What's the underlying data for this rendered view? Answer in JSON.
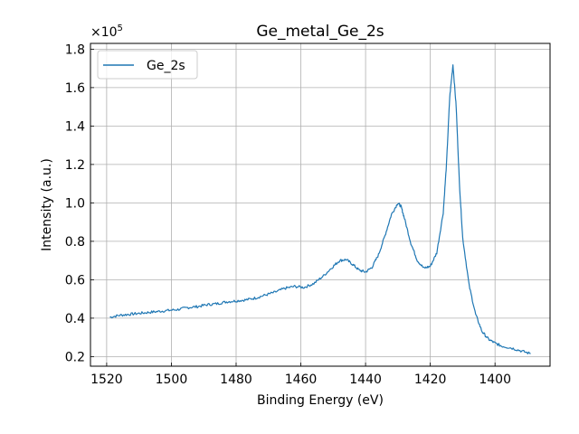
{
  "chart_data": {
    "type": "line",
    "title": "Ge_metal_Ge_2s",
    "xlabel": "Binding Energy (eV)",
    "ylabel": "Intensity (a.u.)",
    "x_reversed": true,
    "xlim": [
      1525,
      1383
    ],
    "ylim": [
      15000,
      183000
    ],
    "xticks": [
      1520,
      1500,
      1480,
      1460,
      1440,
      1420,
      1400
    ],
    "xtick_labels": [
      "1520",
      "1500",
      "1480",
      "1460",
      "1440",
      "1420",
      "1400"
    ],
    "yticks": [
      20000,
      40000,
      60000,
      80000,
      100000,
      120000,
      140000,
      160000,
      180000
    ],
    "ytick_labels": [
      "0.2",
      "0.4",
      "0.6",
      "0.8",
      "1.0",
      "1.2",
      "1.4",
      "1.6",
      "1.8"
    ],
    "y_multiplier_prefix": "×10",
    "y_multiplier_exponent": "5",
    "grid": true,
    "legend_position": "top-left",
    "series": [
      {
        "name": "Ge_2s",
        "color": "#1f77b4",
        "x": [
          1519,
          1516,
          1513,
          1510,
          1507,
          1504,
          1501,
          1498,
          1495,
          1492,
          1489,
          1486,
          1483,
          1480,
          1477,
          1474,
          1471,
          1468,
          1465,
          1462,
          1459,
          1456,
          1453,
          1450,
          1448,
          1446,
          1444,
          1442,
          1440,
          1438,
          1436,
          1434,
          1432,
          1430,
          1429,
          1428,
          1426,
          1424,
          1422,
          1420,
          1418,
          1416,
          1415,
          1414,
          1413,
          1412,
          1411,
          1410,
          1408,
          1406,
          1404,
          1402,
          1400,
          1398,
          1395,
          1392,
          1389
        ],
        "y": [
          40500,
          41500,
          42000,
          42500,
          43000,
          43500,
          44000,
          44500,
          45500,
          46000,
          47000,
          47500,
          48500,
          49000,
          49500,
          50500,
          52000,
          53500,
          55500,
          56500,
          56000,
          58000,
          62000,
          67000,
          70000,
          70500,
          68000,
          65000,
          64000,
          66500,
          73000,
          83000,
          94000,
          100000,
          98000,
          92000,
          79000,
          70000,
          66000,
          67000,
          74000,
          95000,
          120000,
          155000,
          172000,
          150000,
          110000,
          82000,
          57000,
          42000,
          33000,
          29000,
          27000,
          25500,
          24500,
          23000,
          21500
        ]
      }
    ]
  }
}
